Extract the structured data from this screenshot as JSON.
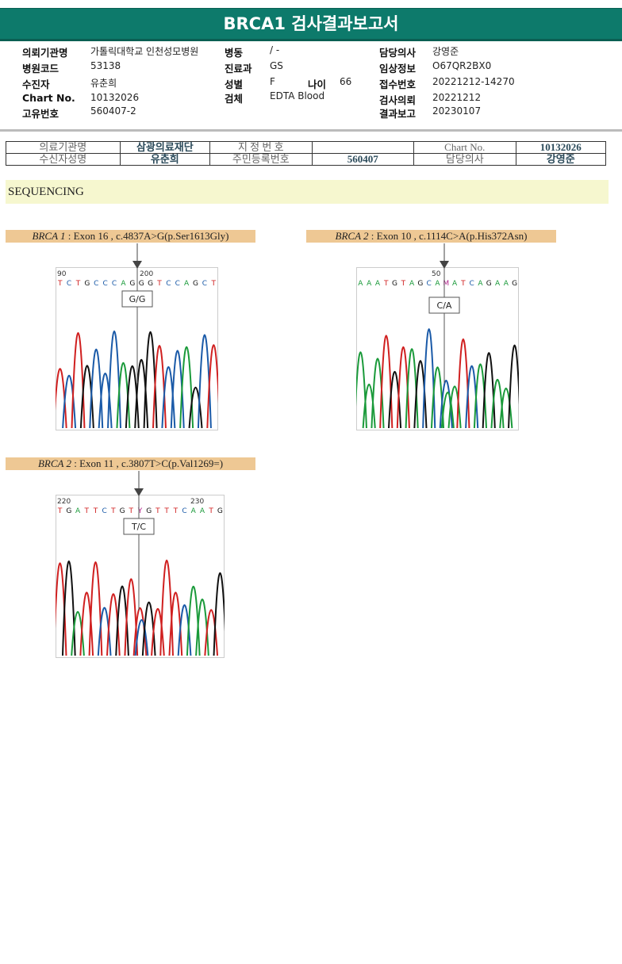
{
  "title": "BRCA1 검사결과보고서",
  "info": {
    "hospital": {
      "label": "의뢰기관명",
      "value": "가톨릭대학교 인천성모병원"
    },
    "code": {
      "label": "병원코드",
      "value": "53138"
    },
    "patient": {
      "label": "수진자",
      "value": "유춘희"
    },
    "chart": {
      "label": "Chart No.",
      "value": "10132026"
    },
    "uid": {
      "label": "고유번호",
      "value": "560407-2"
    },
    "ward": {
      "label": "병동",
      "value": "/ -"
    },
    "dept": {
      "label": "진료과",
      "value": "GS"
    },
    "sex": {
      "label": "성별",
      "value": "F"
    },
    "age": {
      "label": "나이",
      "value": "66"
    },
    "specimen": {
      "label": "검체",
      "value": "EDTA Blood"
    },
    "doctor": {
      "label": "담당의사",
      "value": "강영준"
    },
    "clinical": {
      "label": "임상정보",
      "value": "O67QR2BX0"
    },
    "receipt": {
      "label": "접수번호",
      "value": "20221212-14270"
    },
    "requested": {
      "label": "검사의뢰",
      "value": "20221212"
    },
    "reported": {
      "label": "결과보고",
      "value": "20230107"
    }
  },
  "table": {
    "r1": [
      "의료기관명",
      "삼광의료재단",
      "지 정 번 호",
      "",
      "Chart No.",
      "10132026"
    ],
    "r2": [
      "수신자성명",
      "유춘희",
      "주민등록번호",
      "560407",
      "담당의사",
      "강영준"
    ]
  },
  "section": "SEQUENCING",
  "variants": [
    {
      "gene": "BRCA 1",
      "desc": ": Exon 16 , c.4837A>G(p.Ser1613Gly)",
      "call": "G/G",
      "pos1": "90",
      "pos2": "200",
      "seq": "TCTGCCCAGGGTCCAGCT"
    },
    {
      "gene": "BRCA 2",
      "desc": ": Exon 10 , c.1114C>A(p.His372Asn)",
      "call": "C/A",
      "pos1": "50",
      "pos2": "",
      "seq": "AAATGTAGCAMATCAGAAG"
    },
    {
      "gene": "BRCA 2",
      "desc": ": Exon 11 , c.3807T>C(p.Val1269=)",
      "call": "T/C",
      "pos1": "220",
      "pos2": "230",
      "seq": "TGATTCTGTYGTTTCAATG"
    }
  ],
  "colors": {
    "A": "#1a9a3a",
    "C": "#1a5aa8",
    "G": "#111111",
    "T": "#d02020",
    "M": "#b0208a",
    "Y": "#b0208a",
    "brand": "#0d7a6b"
  }
}
